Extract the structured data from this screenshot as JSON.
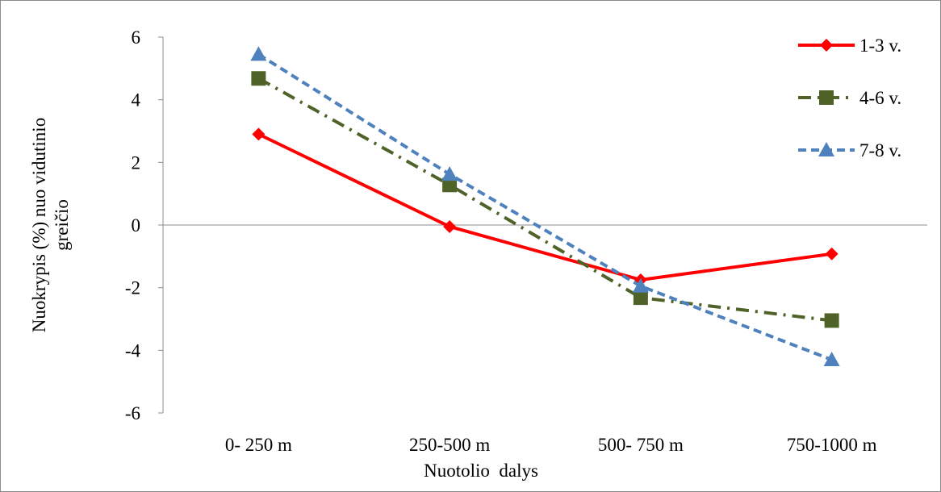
{
  "chart_data": {
    "type": "line",
    "title": "",
    "xlabel": "Nuotolio  dalys",
    "ylabel_lines": [
      "Nuokrypis (%) nuo vidutinio",
      "greičio"
    ],
    "categories": [
      "0- 250 m",
      "250-500 m",
      "500- 750 m",
      "750-1000 m"
    ],
    "ylim": [
      -6,
      6
    ],
    "yticks": [
      6,
      4,
      2,
      0,
      -2,
      -4,
      -6
    ],
    "grid": false,
    "legend": "top-right",
    "series": [
      {
        "name": "1-3 v.",
        "values": [
          2.9,
          -0.05,
          -1.75,
          -0.92
        ],
        "color": "#ff0000",
        "marker": "diamond",
        "dash": "solid"
      },
      {
        "name": "4-6 v.",
        "values": [
          4.68,
          1.28,
          -2.32,
          -3.05
        ],
        "color": "#4f6228",
        "marker": "square",
        "dash": "dashdot"
      },
      {
        "name": "7-8 v.",
        "values": [
          5.45,
          1.62,
          -1.95,
          -4.3
        ],
        "color": "#4f81bd",
        "marker": "triangle",
        "dash": "dash"
      }
    ]
  }
}
